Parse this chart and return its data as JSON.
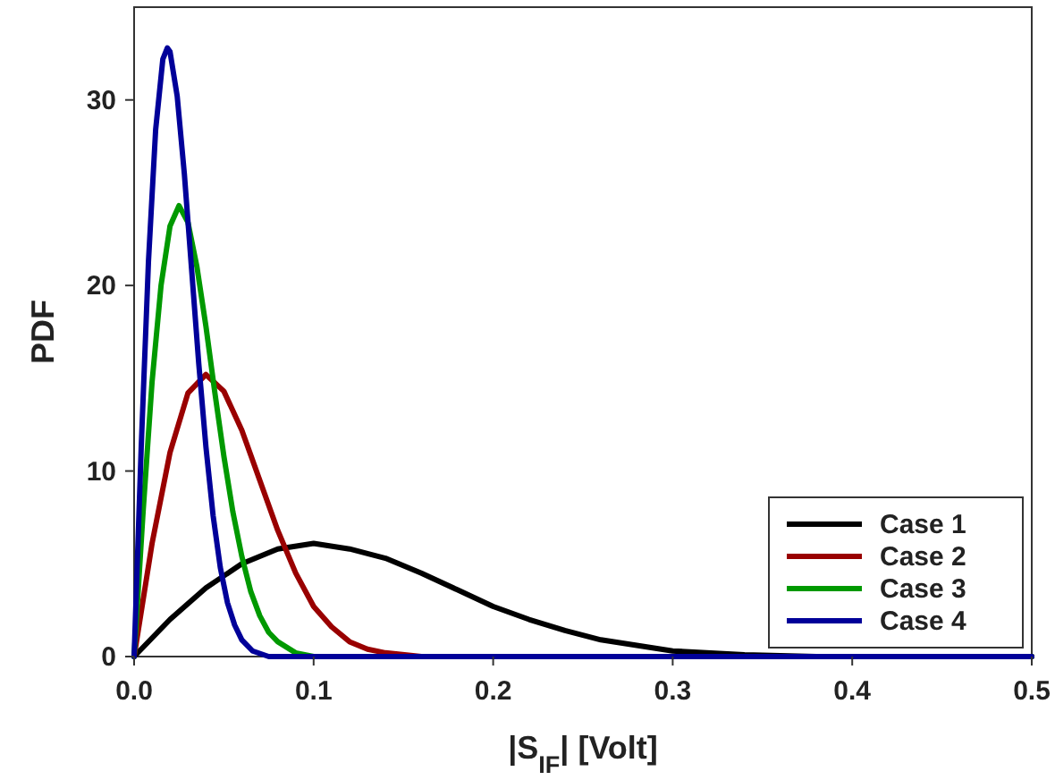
{
  "chart_data": {
    "type": "line",
    "xlabel": "|S$_{IF}$| [Volt]",
    "ylabel": "PDF",
    "xlim": [
      0,
      0.5
    ],
    "xticks": [
      {
        "value": 0,
        "label": "0.0"
      },
      0.1,
      0.2,
      0.3,
      0.4,
      0.5
    ],
    "ylim": [
      0,
      35
    ],
    "yticks": [
      0,
      10,
      20,
      30
    ],
    "grid": false,
    "legend": "bottom right",
    "marker": "none",
    "line_style": "solid",
    "series": [
      {
        "name": "Case 1",
        "color": "#000000",
        "x": [
          0,
          0.02,
          0.04,
          0.06,
          0.08,
          0.1,
          0.12,
          0.14,
          0.16,
          0.18,
          0.2,
          0.22,
          0.24,
          0.26,
          0.28,
          0.3,
          0.34,
          0.38,
          0.42,
          0.5
        ],
        "values": [
          0,
          2,
          3.7,
          5,
          5.8,
          6.1,
          5.8,
          5.3,
          4.5,
          3.6,
          2.7,
          2,
          1.4,
          0.9,
          0.6,
          0.3,
          0.1,
          0,
          0,
          0
        ]
      },
      {
        "name": "Case 2",
        "color": "#990000",
        "x": [
          0,
          0.01,
          0.02,
          0.03,
          0.04,
          0.05,
          0.06,
          0.07,
          0.08,
          0.09,
          0.1,
          0.11,
          0.12,
          0.13,
          0.14,
          0.16,
          0.2,
          0.5
        ],
        "values": [
          0,
          6.1,
          11,
          14.2,
          15.2,
          14.3,
          12.2,
          9.5,
          6.8,
          4.5,
          2.7,
          1.6,
          0.8,
          0.4,
          0.2,
          0,
          0,
          0
        ]
      },
      {
        "name": "Case 3",
        "color": "#009900",
        "x": [
          0,
          0.005,
          0.01,
          0.015,
          0.02,
          0.025,
          0.03,
          0.035,
          0.04,
          0.045,
          0.05,
          0.055,
          0.06,
          0.065,
          0.07,
          0.075,
          0.08,
          0.09,
          0.1,
          0.12,
          0.5
        ],
        "values": [
          0,
          7.8,
          14.8,
          20,
          23.2,
          24.3,
          23.4,
          21,
          17.8,
          14.2,
          10.8,
          7.8,
          5.4,
          3.5,
          2.2,
          1.3,
          0.8,
          0.2,
          0,
          0,
          0
        ]
      },
      {
        "name": "Case 4",
        "color": "#000099",
        "x": [
          0,
          0.004,
          0.008,
          0.012,
          0.016,
          0.0185,
          0.02,
          0.024,
          0.028,
          0.032,
          0.036,
          0.04,
          0.044,
          0.048,
          0.052,
          0.056,
          0.06,
          0.066,
          0.075,
          0.09,
          0.5
        ],
        "values": [
          0,
          11.4,
          21.3,
          28.4,
          32.2,
          32.8,
          32.6,
          30.2,
          26,
          20.9,
          15.8,
          11.3,
          7.6,
          4.8,
          2.9,
          1.7,
          0.9,
          0.3,
          0,
          0,
          0
        ]
      }
    ]
  }
}
